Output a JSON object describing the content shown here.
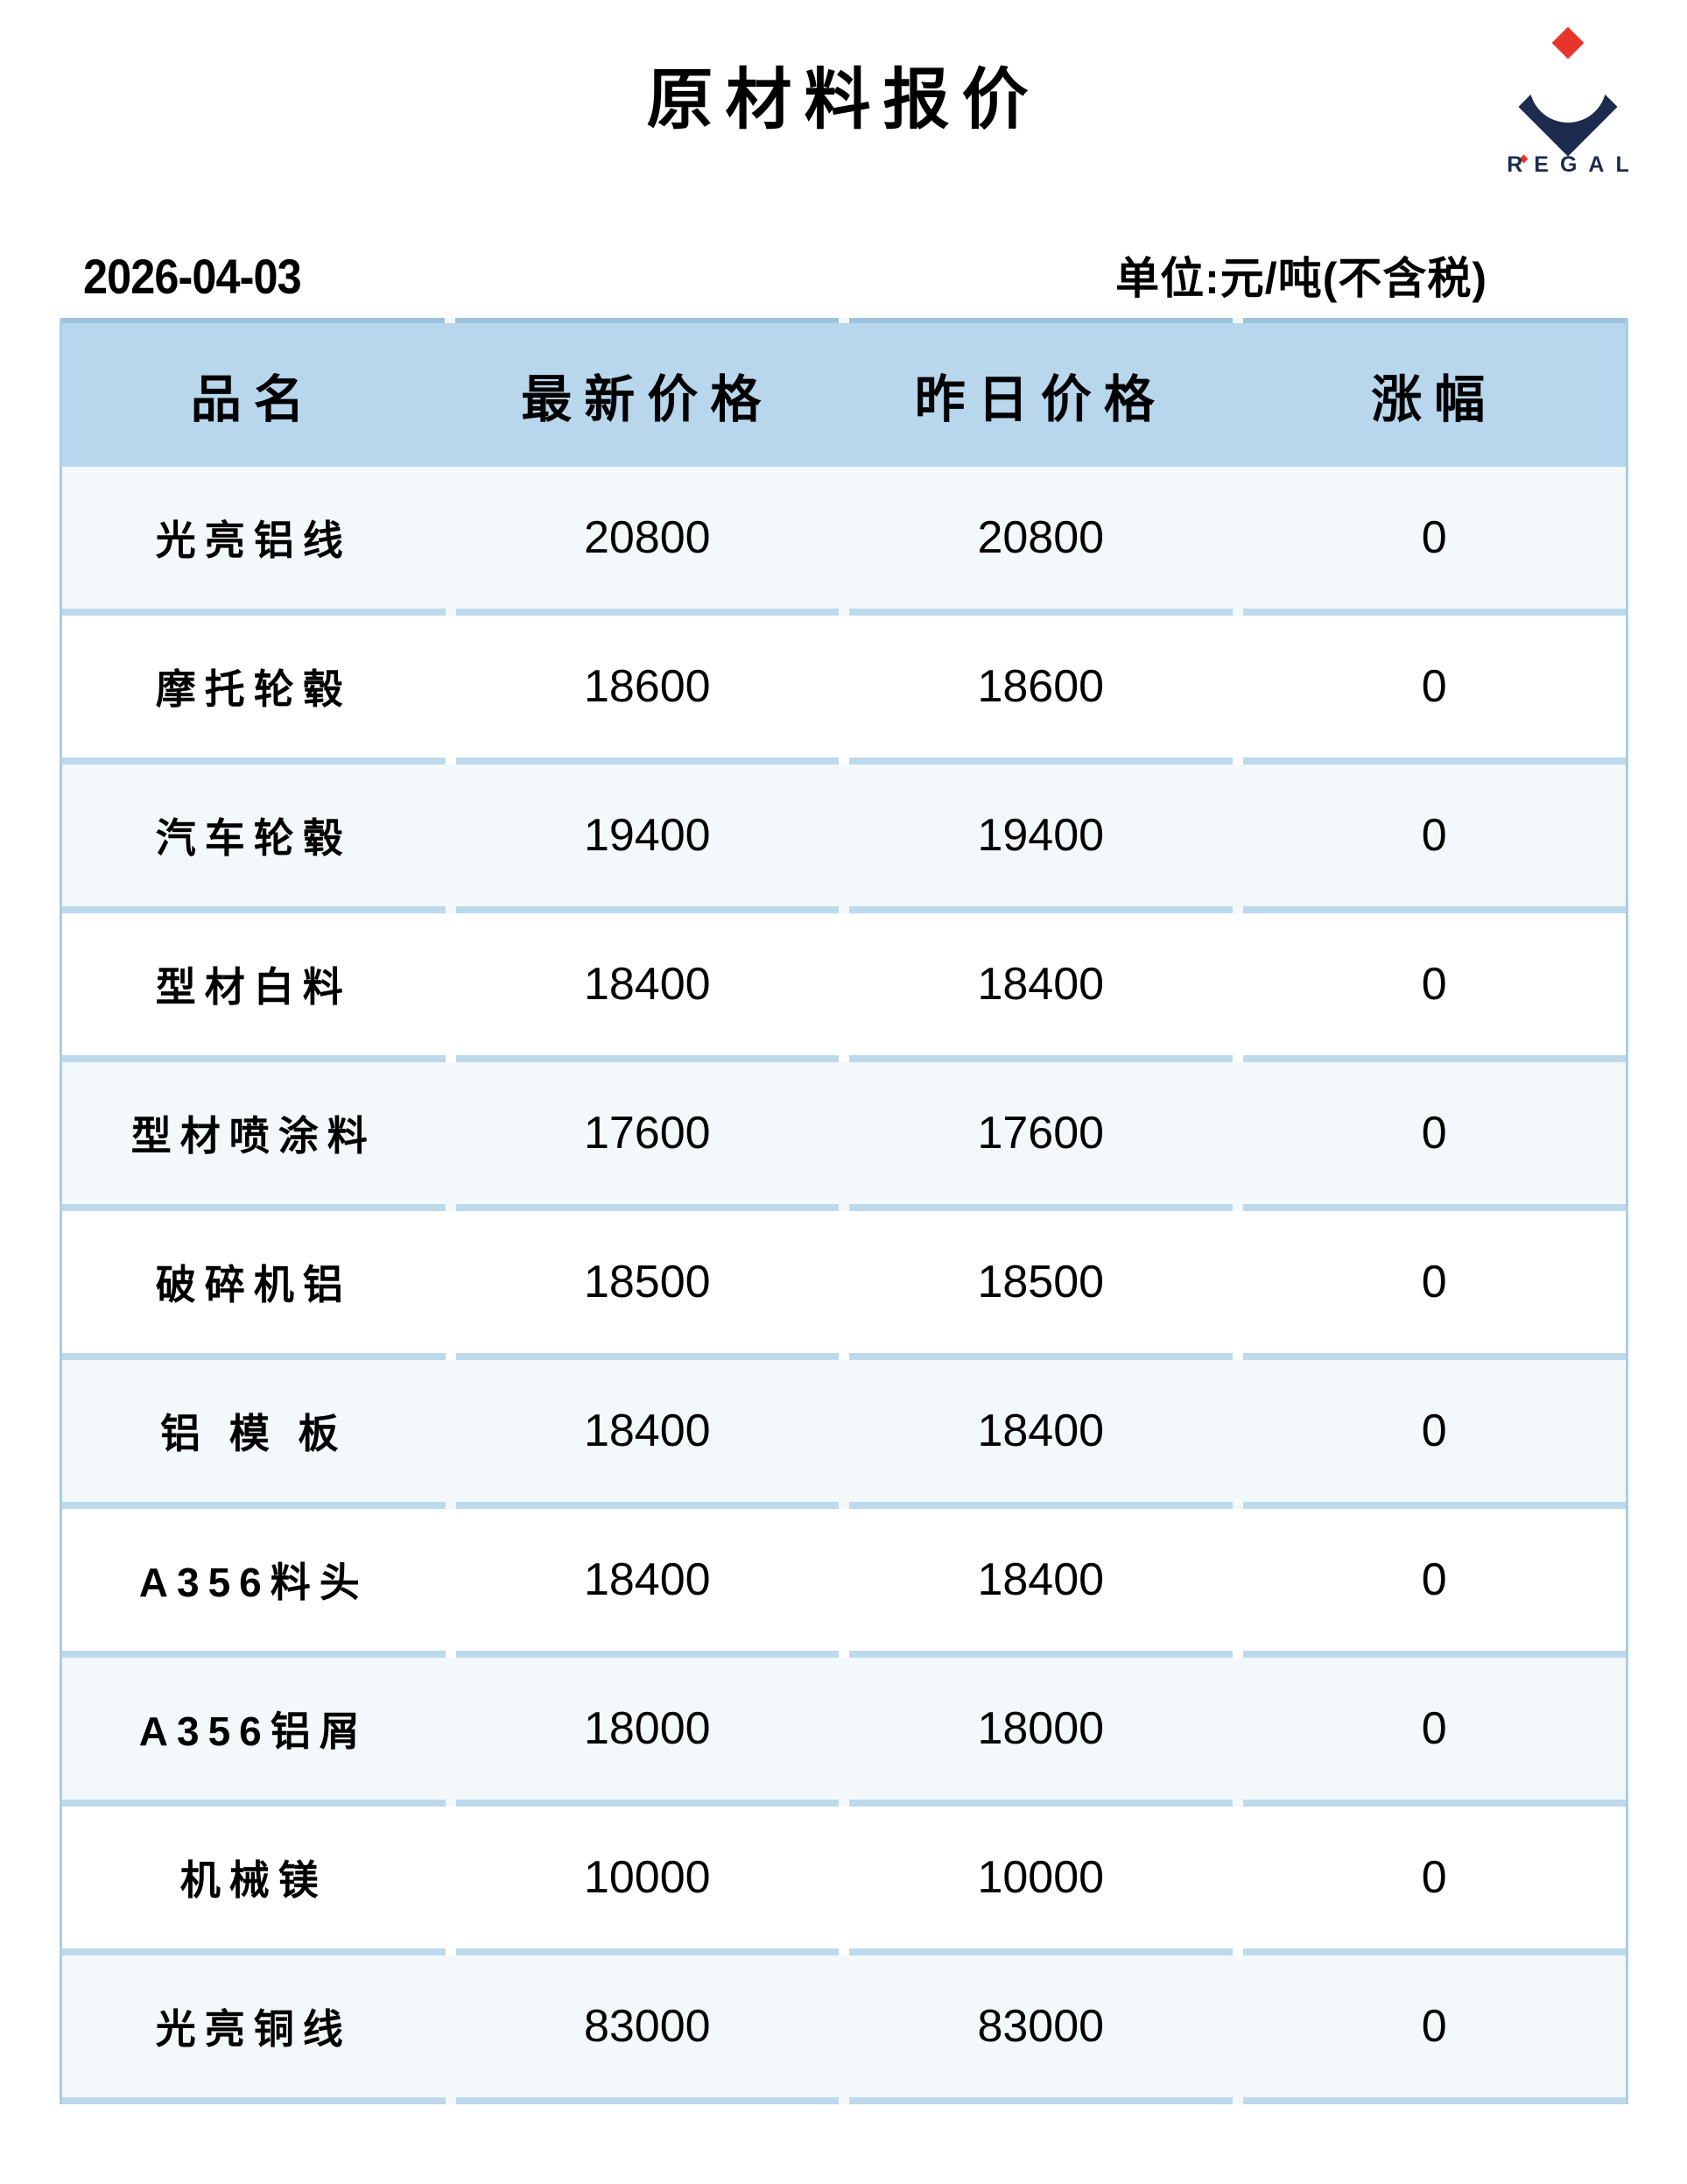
{
  "title": "原材料报价",
  "logo": {
    "brand": "REGAL",
    "navy": "#1c2b4e",
    "red": "#e8352c"
  },
  "meta": {
    "date": "2026-04-03",
    "unit_note": "单位:元/吨(不含税)"
  },
  "table": {
    "columns": [
      "品名",
      "最新价格",
      "昨日价格",
      "涨幅"
    ],
    "rows": [
      {
        "name": "光亮铝线",
        "latest": "20800",
        "yesterday": "20800",
        "change": "0"
      },
      {
        "name": "摩托轮毂",
        "latest": "18600",
        "yesterday": "18600",
        "change": "0"
      },
      {
        "name": "汽车轮毂",
        "latest": "19400",
        "yesterday": "19400",
        "change": "0"
      },
      {
        "name": "型材白料",
        "latest": "18400",
        "yesterday": "18400",
        "change": "0"
      },
      {
        "name": "型材喷涂料",
        "latest": "17600",
        "yesterday": "17600",
        "change": "0"
      },
      {
        "name": "破碎机铝",
        "latest": "18500",
        "yesterday": "18500",
        "change": "0"
      },
      {
        "name": "铝 模 板",
        "latest": "18400",
        "yesterday": "18400",
        "change": "0"
      },
      {
        "name": "A356料头",
        "latest": "18400",
        "yesterday": "18400",
        "change": "0"
      },
      {
        "name": "A356铝屑",
        "latest": "18000",
        "yesterday": "18000",
        "change": "0"
      },
      {
        "name": "机械镁",
        "latest": "10000",
        "yesterday": "10000",
        "change": "0"
      },
      {
        "name": "光亮铜线",
        "latest": "83000",
        "yesterday": "83000",
        "change": "0"
      }
    ]
  },
  "colors": {
    "header-bg": "#b8d6ec",
    "header-top-border": "#9cc3de",
    "separator": "#bdd9ec",
    "frame-border": "#a9cee6",
    "row-alt-bg": "#f3f8fb",
    "row-bg": "#ffffff",
    "text": "#000000",
    "logo-navy": "#1c2b4e",
    "logo-red": "#e8352c"
  }
}
